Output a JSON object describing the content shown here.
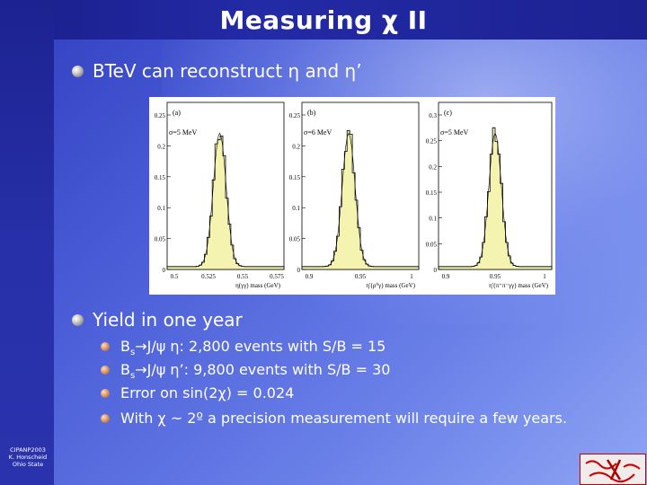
{
  "slide": {
    "title": "Measuring χ II",
    "bullets": [
      {
        "text": "BTeV can reconstruct η and η’"
      },
      {
        "text": "Yield in one year"
      }
    ],
    "sub_bullets": [
      {
        "prefix": "B",
        "sub": "s",
        "text": "→J/ψ η:  2,800 events  with S/B = 15"
      },
      {
        "prefix": "B",
        "sub": "s",
        "text": "→J/ψ η’: 9,800 events  with S/B = 30"
      },
      {
        "prefix": "",
        "sub": "",
        "text": "Error on sin(2χ) = 0.024"
      },
      {
        "prefix": "",
        "sub": "",
        "text": "With χ ~ 2º a precision measurement will require a few years."
      }
    ],
    "footer": [
      "CIPANP2003",
      "K. Honscheid",
      "Ohio State"
    ],
    "logo_text": "BTeV"
  },
  "figure": {
    "panels": [
      {
        "label": "(a)",
        "sigma": "σ=5 MeV",
        "xlabel": "η(γγ) mass (GeV)",
        "yticks": [
          "0.25",
          "0.2",
          "0.15",
          "0.1",
          "0.05",
          "0"
        ],
        "xticks": [
          "0.5",
          "0.525",
          "0.55",
          "0.575"
        ]
      },
      {
        "label": "(b)",
        "sigma": "σ=6 MeV",
        "xlabel": "η′(ρ⁰γ) mass (GeV)",
        "yticks": [
          "0.25",
          "0.2",
          "0.15",
          "0.1",
          "0.05",
          "0"
        ],
        "xticks": [
          "0.9",
          "0.95",
          "1"
        ]
      },
      {
        "label": "(c)",
        "sigma": "σ=5 MeV",
        "xlabel": "η′(π⁺π⁻γγ) mass (GeV)",
        "yticks": [
          "0.3",
          "0.25",
          "0.2",
          "0.15",
          "0.1",
          "0.05",
          "0"
        ],
        "xticks": [
          "0.9",
          "0.95",
          "1"
        ]
      }
    ]
  }
}
